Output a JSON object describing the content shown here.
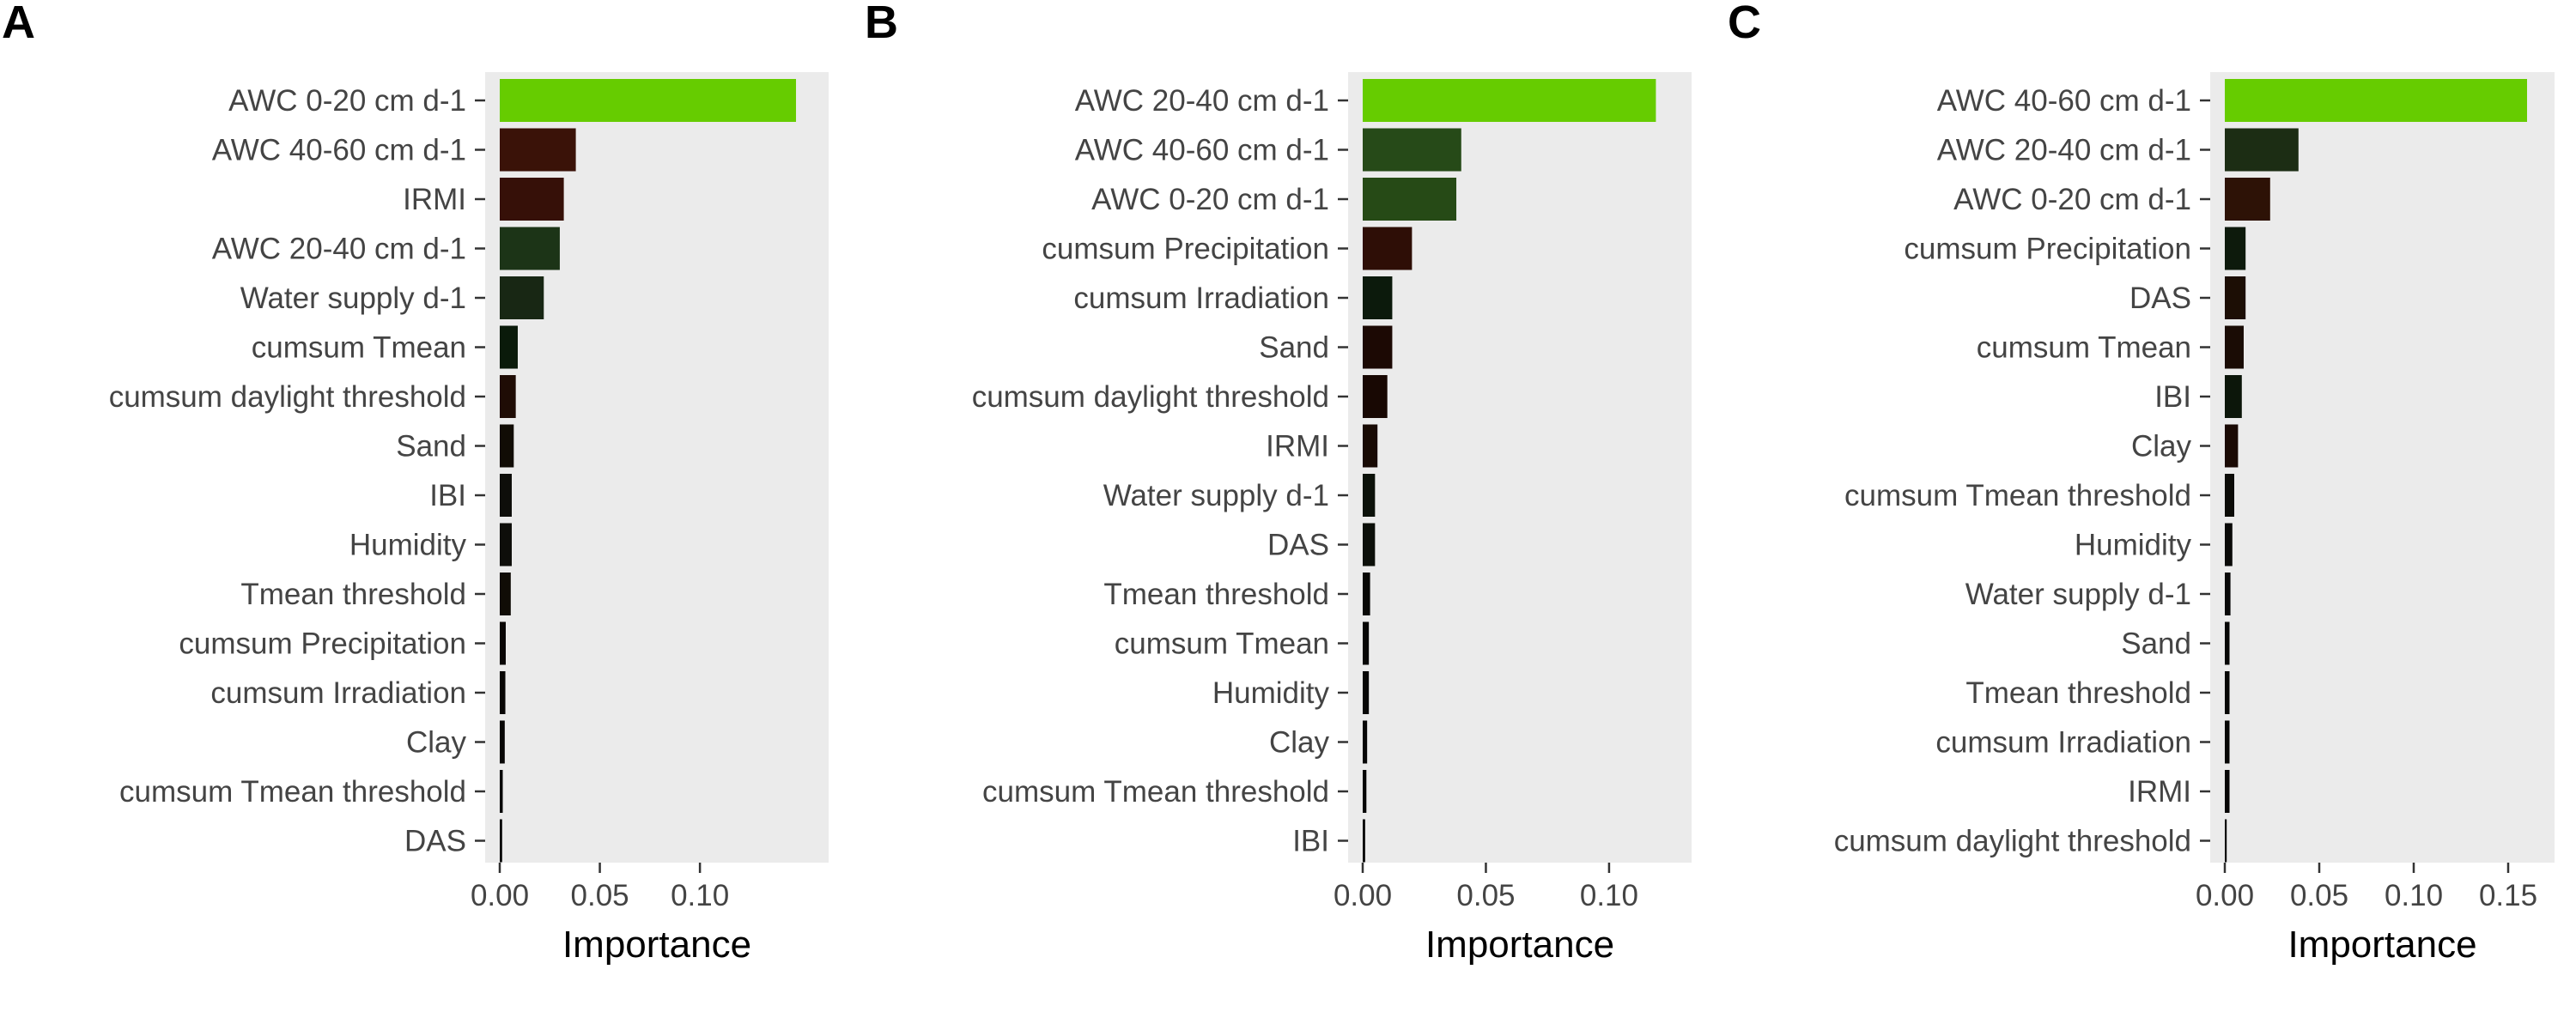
{
  "colors": {
    "panel_background": "#ebebeb",
    "text": "#444444",
    "scale_low": "#000000",
    "scale_high": "#66cc00"
  },
  "chart_data": [
    {
      "type": "bar",
      "orientation": "horizontal",
      "panel_letter": "A",
      "xlabel": "Importance",
      "xlim": [
        0,
        0.16
      ],
      "xticks": [
        "0.00",
        "0.05",
        "0.10"
      ],
      "grid": false,
      "categories": [
        "AWC 0-20 cm d-1",
        "AWC 40-60 cm d-1",
        "IRMI",
        "AWC 20-40 cm d-1",
        "Water supply d-1",
        "cumsum Tmean",
        "cumsum daylight threshold",
        "Sand",
        "IBI",
        "Humidity",
        "Tmean threshold",
        "cumsum Precipitation",
        "cumsum Irradiation",
        "Clay",
        "cumsum Tmean threshold",
        "DAS"
      ],
      "values": [
        0.148,
        0.038,
        0.032,
        0.03,
        0.022,
        0.009,
        0.008,
        0.007,
        0.006,
        0.006,
        0.0055,
        0.003,
        0.0028,
        0.0025,
        0.0015,
        0.0012
      ],
      "colors": [
        "#66cc00",
        "#3a1208",
        "#361008",
        "#1c3417",
        "#182714",
        "#0a1a0a",
        "#1f0c05",
        "#110c05",
        "#0e0e0a",
        "#0e0e0a",
        "#100c06",
        "#0a0605",
        "#080605",
        "#070605",
        "#050505",
        "#040404"
      ]
    },
    {
      "type": "bar",
      "orientation": "horizontal",
      "panel_letter": "B",
      "xlabel": "Importance",
      "xlim": [
        0,
        0.13
      ],
      "xticks": [
        "0.00",
        "0.05",
        "0.10"
      ],
      "grid": false,
      "categories": [
        "AWC 20-40 cm d-1",
        "AWC 40-60 cm d-1",
        "AWC 0-20 cm d-1",
        "cumsum Precipitation",
        "cumsum Irradiation",
        "Sand",
        "cumsum daylight threshold",
        "IRMI",
        "Water supply d-1",
        "DAS",
        "Tmean threshold",
        "cumsum Tmean",
        "Humidity",
        "Clay",
        "cumsum Tmean threshold",
        "IBI"
      ],
      "values": [
        0.119,
        0.04,
        0.038,
        0.02,
        0.012,
        0.012,
        0.01,
        0.006,
        0.005,
        0.005,
        0.003,
        0.0025,
        0.0025,
        0.0018,
        0.0015,
        0.001
      ],
      "colors": [
        "#66cc00",
        "#264a18",
        "#264a16",
        "#2e0e06",
        "#0c1a0c",
        "#1c0904",
        "#180803",
        "#180a04",
        "#0c120a",
        "#0c100a",
        "#080806",
        "#070706",
        "#070706",
        "#060606",
        "#050505",
        "#040404"
      ]
    },
    {
      "type": "bar",
      "orientation": "horizontal",
      "panel_letter": "C",
      "xlabel": "Importance",
      "xlim": [
        0,
        0.17
      ],
      "xticks": [
        "0.00",
        "0.05",
        "0.10",
        "0.15"
      ],
      "grid": false,
      "categories": [
        "AWC 40-60 cm d-1",
        "AWC 20-40 cm d-1",
        "AWC 0-20 cm d-1",
        "cumsum Precipitation",
        "DAS",
        "cumsum Tmean",
        "IBI",
        "Clay",
        "cumsum Tmean threshold",
        "Humidity",
        "Water supply d-1",
        "Sand",
        "Tmean threshold",
        "cumsum Irradiation",
        "IRMI",
        "cumsum daylight threshold"
      ],
      "values": [
        0.16,
        0.039,
        0.024,
        0.011,
        0.011,
        0.01,
        0.009,
        0.007,
        0.005,
        0.004,
        0.003,
        0.0025,
        0.0025,
        0.0025,
        0.0025,
        0.001
      ],
      "colors": [
        "#66cc00",
        "#1c2d14",
        "#2d1206",
        "#0d1a0c",
        "#1c0e05",
        "#1a0c05",
        "#0c160a",
        "#1a0a04",
        "#0c0c08",
        "#0a0a08",
        "#080808",
        "#070706",
        "#070706",
        "#070706",
        "#070606",
        "#040404"
      ]
    }
  ]
}
